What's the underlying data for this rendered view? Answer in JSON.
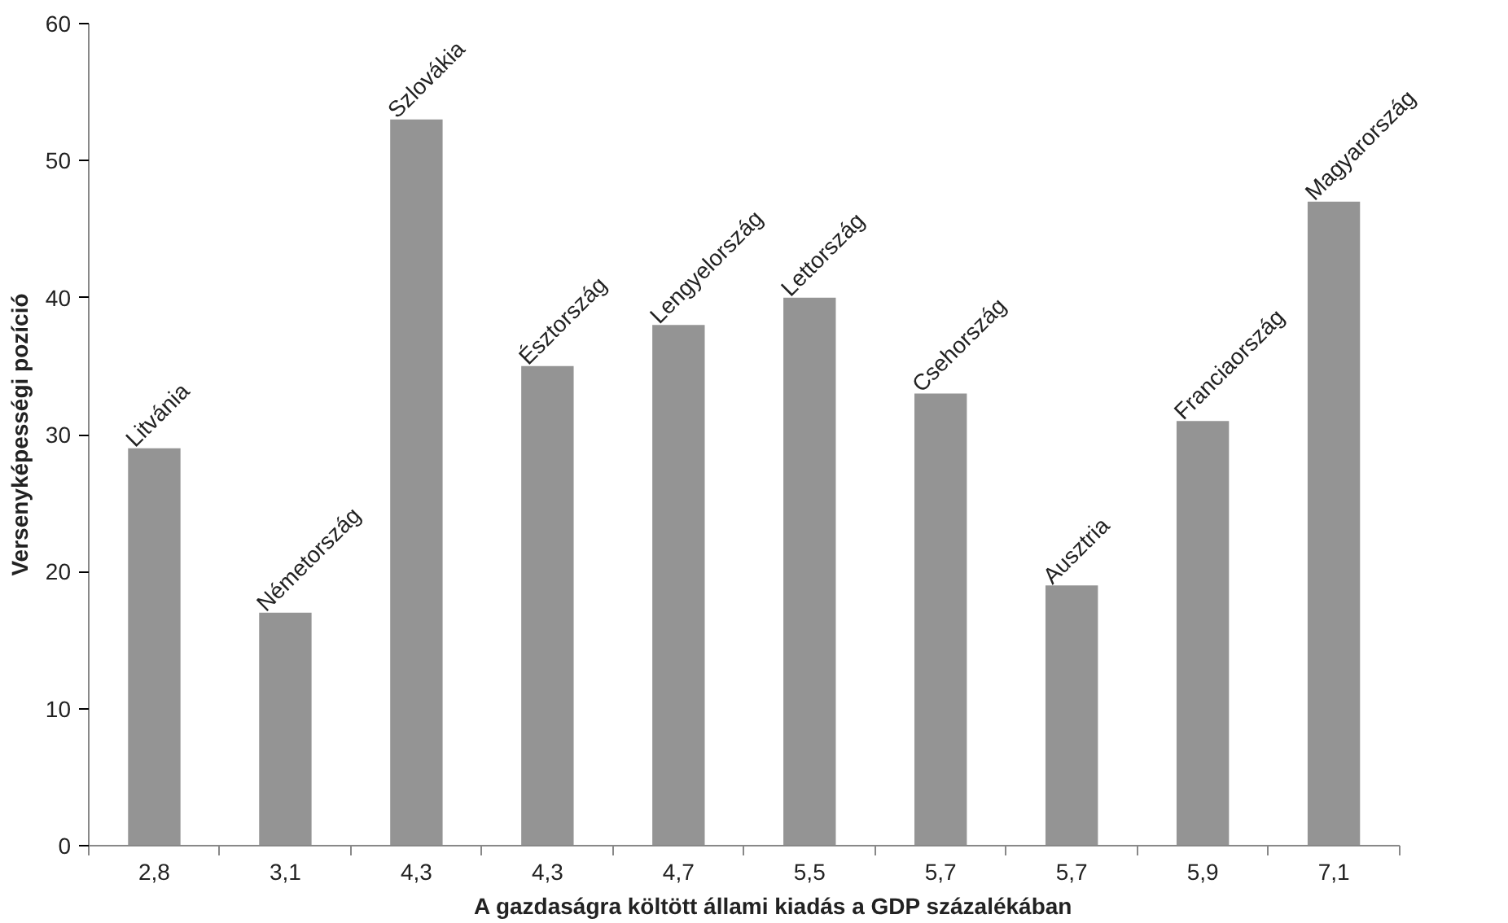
{
  "chart_data": {
    "type": "bar",
    "xlabel": "A gazdaságra költött állami kiadás a GDP százalékában",
    "ylabel": "Versenyképességi pozíció",
    "categories": [
      "2,8",
      "3,1",
      "4,3",
      "4,3",
      "4,7",
      "5,5",
      "5,7",
      "5,7",
      "5,9",
      "7,1"
    ],
    "values": [
      29,
      17,
      53,
      35,
      38,
      40,
      33,
      19,
      31,
      47
    ],
    "value_labels": [
      "Litvánia",
      "Németország",
      "Szlovákia",
      "Észtország",
      "Lengyelország",
      "Lettország",
      "Csehország",
      "Ausztria",
      "Franciaország",
      "Magyarország"
    ],
    "color": "#949494",
    "ylim": [
      0,
      60
    ],
    "yticks": [
      0,
      10,
      20,
      30,
      40,
      50,
      60
    ],
    "grid": false
  }
}
